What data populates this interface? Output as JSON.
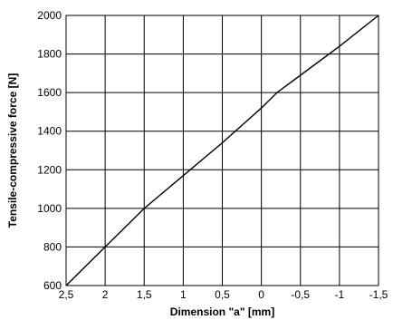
{
  "chart_data": {
    "type": "line",
    "title": "",
    "xlabel": "Dimension \"a\" [mm]",
    "ylabel": "Tensile-compressive force [N]",
    "x_reversed": true,
    "xlim": [
      2.5,
      -1.5
    ],
    "ylim": [
      600,
      2000
    ],
    "grid": true,
    "legend": "none",
    "x_ticks": [
      {
        "value": 2.5,
        "label": "2,5"
      },
      {
        "value": 2,
        "label": "2"
      },
      {
        "value": 1.5,
        "label": "1,5"
      },
      {
        "value": 1,
        "label": "1"
      },
      {
        "value": 0.5,
        "label": "0,5"
      },
      {
        "value": 0,
        "label": "0"
      },
      {
        "value": -0.5,
        "label": "-0,5"
      },
      {
        "value": -1,
        "label": "-1"
      },
      {
        "value": -1.5,
        "label": "-1,5"
      }
    ],
    "y_ticks": [
      {
        "value": 600,
        "label": "600"
      },
      {
        "value": 800,
        "label": "800"
      },
      {
        "value": 1000,
        "label": "1000"
      },
      {
        "value": 1200,
        "label": "1200"
      },
      {
        "value": 1400,
        "label": "1400"
      },
      {
        "value": 1600,
        "label": "1600"
      },
      {
        "value": 1800,
        "label": "1800"
      },
      {
        "value": 2000,
        "label": "2000"
      }
    ],
    "series": [
      {
        "color": "#000000",
        "x": [
          2.5,
          2,
          1.5,
          1,
          0.5,
          0,
          -0.2,
          -0.5,
          -1,
          -1.5
        ],
        "y": [
          600,
          800,
          1000,
          1170,
          1340,
          1520,
          1600,
          1690,
          1840,
          2000
        ]
      }
    ]
  }
}
